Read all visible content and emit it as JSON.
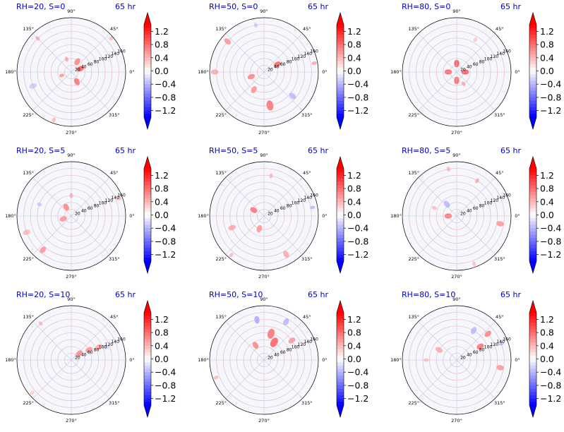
{
  "figure": {
    "panel_layout": "3x3 grid of polar plots, each with its own vertical colorbar on the right"
  },
  "chart_data": [
    {
      "type": "heatmap",
      "projection": "polar",
      "title": "RH=20, S=0",
      "time_label": "65 hr",
      "angle_ticks": [
        "0°",
        "45°",
        "90°",
        "135°",
        "180°",
        "225°",
        "270°",
        "315°"
      ],
      "radial_ticks": [
        20,
        40,
        60,
        80,
        100,
        120,
        140,
        160
      ],
      "colorbar": {
        "ticks": [
          -1.2,
          -0.8,
          -0.4,
          0.0,
          0.4,
          0.8,
          1.2
        ],
        "tick_labels": [
          "−1.2",
          "−0.8",
          "−0.4",
          "0.0",
          "0.4",
          "0.8",
          "1.2"
        ],
        "range": [
          -1.4,
          1.4
        ],
        "extend": "both",
        "colormap": "bwr"
      },
      "features": [
        {
          "r": 28,
          "theta": 20,
          "value": 0.9,
          "size": 3
        },
        {
          "r": 35,
          "theta": 60,
          "value": 0.7,
          "size": 3
        },
        {
          "r": 40,
          "theta": 110,
          "value": 0.5,
          "size": 2
        },
        {
          "r": 30,
          "theta": 200,
          "value": 0.6,
          "size": 2
        },
        {
          "r": 33,
          "theta": 300,
          "value": 0.8,
          "size": 3
        },
        {
          "r": 140,
          "theta": 135,
          "value": 0.5,
          "size": 2
        },
        {
          "r": 155,
          "theta": 40,
          "value": 0.4,
          "size": 2
        },
        {
          "r": 120,
          "theta": 200,
          "value": -0.3,
          "size": 3
        },
        {
          "r": 150,
          "theta": 250,
          "value": 0.4,
          "size": 2
        }
      ],
      "grid": true
    },
    {
      "type": "heatmap",
      "projection": "polar",
      "title": "RH=50, S=0",
      "time_label": "65 hr",
      "angle_ticks": [
        "0°",
        "45°",
        "90°",
        "135°",
        "180°",
        "225°",
        "270°",
        "315°"
      ],
      "radial_ticks": [
        20,
        40,
        60,
        80,
        100,
        120,
        140,
        160
      ],
      "colorbar": {
        "ticks": [
          -1.2,
          -0.8,
          -0.4,
          0.0,
          0.4,
          0.8,
          1.2
        ],
        "tick_labels": [
          "−1.2",
          "−0.8",
          "−0.4",
          "0.0",
          "0.4",
          "0.8",
          "1.2"
        ],
        "range": [
          -1.4,
          1.4
        ],
        "extend": "both",
        "colormap": "bwr"
      },
      "features": [
        {
          "r": 45,
          "theta": 30,
          "value": 0.9,
          "size": 3
        },
        {
          "r": 40,
          "theta": 200,
          "value": 0.7,
          "size": 3
        },
        {
          "r": 60,
          "theta": 240,
          "value": 0.6,
          "size": 3
        },
        {
          "r": 140,
          "theta": 140,
          "value": 0.6,
          "size": 3
        },
        {
          "r": 145,
          "theta": 180,
          "value": 0.5,
          "size": 3
        },
        {
          "r": 150,
          "theta": 10,
          "value": 0.5,
          "size": 2
        },
        {
          "r": 100,
          "theta": 280,
          "value": 0.8,
          "size": 4
        },
        {
          "r": 110,
          "theta": 320,
          "value": -0.4,
          "size": 3
        },
        {
          "r": 140,
          "theta": 100,
          "value": -0.3,
          "size": 2
        }
      ],
      "grid": true
    },
    {
      "type": "heatmap",
      "projection": "polar",
      "title": "RH=80, S=0",
      "time_label": "65 hr",
      "angle_ticks": [
        "0°",
        "45°",
        "90°",
        "135°",
        "180°",
        "225°",
        "270°",
        "315°"
      ],
      "radial_ticks": [
        20,
        40,
        60,
        80,
        100,
        120,
        140,
        160
      ],
      "colorbar": {
        "ticks": [
          -1.2,
          -0.8,
          -0.4,
          0.0,
          0.4,
          0.8,
          1.2
        ],
        "tick_labels": [
          "−1.2",
          "−0.8",
          "−0.4",
          "0.0",
          "0.4",
          "0.8",
          "1.2"
        ],
        "range": [
          -1.4,
          1.4
        ],
        "extend": "both",
        "colormap": "bwr"
      },
      "features": [
        {
          "r": 25,
          "theta": 0,
          "value": 1.0,
          "size": 3
        },
        {
          "r": 25,
          "theta": 90,
          "value": 1.0,
          "size": 3
        },
        {
          "r": 25,
          "theta": 180,
          "value": 0.9,
          "size": 3
        },
        {
          "r": 25,
          "theta": 270,
          "value": 0.9,
          "size": 3
        },
        {
          "r": 40,
          "theta": 300,
          "value": 0.5,
          "size": 2
        },
        {
          "r": 110,
          "theta": 60,
          "value": 0.3,
          "size": 2
        }
      ],
      "grid": true
    },
    {
      "type": "heatmap",
      "projection": "polar",
      "title": "RH=20, S=5",
      "time_label": "65 hr",
      "angle_ticks": [
        "0°",
        "45°",
        "90°",
        "135°",
        "180°",
        "225°",
        "270°",
        "315°"
      ],
      "radial_ticks": [
        20,
        40,
        60,
        80,
        100,
        120,
        140,
        160
      ],
      "colorbar": {
        "ticks": [
          -1.2,
          -0.8,
          -0.4,
          0.0,
          0.4,
          0.8,
          1.2
        ],
        "tick_labels": [
          "−1.2",
          "−0.8",
          "−0.4",
          "0.0",
          "0.4",
          "0.8",
          "1.2"
        ],
        "range": [
          -1.4,
          1.4
        ],
        "extend": "both",
        "colormap": "bwr"
      },
      "features": [
        {
          "r": 30,
          "theta": 120,
          "value": 0.7,
          "size": 3
        },
        {
          "r": 25,
          "theta": 200,
          "value": 0.6,
          "size": 3
        },
        {
          "r": 60,
          "theta": 90,
          "value": 0.5,
          "size": 2
        },
        {
          "r": 140,
          "theta": 200,
          "value": 0.4,
          "size": 3
        },
        {
          "r": 130,
          "theta": 230,
          "value": 0.6,
          "size": 3
        },
        {
          "r": 150,
          "theta": 20,
          "value": 0.4,
          "size": 2
        },
        {
          "r": 100,
          "theta": 160,
          "value": -0.3,
          "size": 2
        }
      ],
      "grid": true
    },
    {
      "type": "heatmap",
      "projection": "polar",
      "title": "RH=50, S=5",
      "time_label": "65 hr",
      "angle_ticks": [
        "0°",
        "45°",
        "90°",
        "135°",
        "180°",
        "225°",
        "270°",
        "315°"
      ],
      "radial_ticks": [
        20,
        40,
        60,
        80,
        100,
        120,
        140,
        160
      ],
      "colorbar": {
        "ticks": [
          -1.2,
          -0.8,
          -0.4,
          0.0,
          0.4,
          0.8,
          1.2
        ],
        "tick_labels": [
          "−1.2",
          "−0.8",
          "−0.4",
          "0.0",
          "0.4",
          "0.8",
          "1.2"
        ],
        "range": [
          -1.4,
          1.4
        ],
        "extend": "both",
        "colormap": "bwr"
      },
      "features": [
        {
          "r": 35,
          "theta": 150,
          "value": 0.8,
          "size": 3
        },
        {
          "r": 40,
          "theta": 250,
          "value": 0.6,
          "size": 3
        },
        {
          "r": 100,
          "theta": 200,
          "value": 0.5,
          "size": 3
        },
        {
          "r": 130,
          "theta": 300,
          "value": 0.5,
          "size": 3
        },
        {
          "r": 145,
          "theta": 10,
          "value": -0.4,
          "size": 2
        },
        {
          "r": 120,
          "theta": 80,
          "value": 0.4,
          "size": 2
        },
        {
          "r": 150,
          "theta": 230,
          "value": 0.4,
          "size": 2
        }
      ],
      "grid": true
    },
    {
      "type": "heatmap",
      "projection": "polar",
      "title": "RH=80, S=5",
      "time_label": "65 hr",
      "angle_ticks": [
        "0°",
        "45°",
        "90°",
        "135°",
        "180°",
        "225°",
        "270°",
        "315°"
      ],
      "radial_ticks": [
        20,
        40,
        60,
        80,
        100,
        120,
        140,
        160
      ],
      "colorbar": {
        "ticks": [
          -1.2,
          -0.8,
          -0.4,
          0.0,
          0.4,
          0.8,
          1.2
        ],
        "tick_labels": [
          "−1.2",
          "−0.8",
          "−0.4",
          "0.0",
          "0.4",
          "0.8",
          "1.2"
        ],
        "range": [
          -1.4,
          1.4
        ],
        "extend": "both",
        "colormap": "bwr"
      },
      "features": [
        {
          "r": 25,
          "theta": 180,
          "value": 0.8,
          "size": 3
        },
        {
          "r": 45,
          "theta": 130,
          "value": -0.4,
          "size": 3
        },
        {
          "r": 70,
          "theta": 160,
          "value": 0.4,
          "size": 2
        },
        {
          "r": 120,
          "theta": 60,
          "value": 0.5,
          "size": 2
        },
        {
          "r": 130,
          "theta": 350,
          "value": 0.6,
          "size": 3
        },
        {
          "r": 150,
          "theta": 290,
          "value": 0.4,
          "size": 2
        },
        {
          "r": 140,
          "theta": 100,
          "value": 0.4,
          "size": 2
        }
      ],
      "grid": true
    },
    {
      "type": "heatmap",
      "projection": "polar",
      "title": "RH=20, S=10",
      "time_label": "65 hr",
      "angle_ticks": [
        "0°",
        "45°",
        "90°",
        "135°",
        "180°",
        "225°",
        "270°",
        "315°"
      ],
      "radial_ticks": [
        20,
        40,
        60,
        80,
        100,
        120,
        140,
        160
      ],
      "colorbar": {
        "ticks": [
          -1.2,
          -0.8,
          -0.4,
          0.0,
          0.4,
          0.8,
          1.2
        ],
        "tick_labels": [
          "−1.2",
          "−0.8",
          "−0.4",
          "0.0",
          "0.4",
          "0.8",
          "1.2"
        ],
        "range": [
          -1.4,
          1.4
        ],
        "extend": "both",
        "colormap": "bwr"
      },
      "features": [
        {
          "r": 30,
          "theta": 40,
          "value": 0.7,
          "size": 3
        },
        {
          "r": 60,
          "theta": 30,
          "value": 0.6,
          "size": 3
        },
        {
          "r": 90,
          "theta": 25,
          "value": 0.5,
          "size": 3
        },
        {
          "r": 110,
          "theta": 20,
          "value": -0.3,
          "size": 2
        },
        {
          "r": 140,
          "theta": 130,
          "value": 0.4,
          "size": 2
        },
        {
          "r": 150,
          "theta": 220,
          "value": 0.3,
          "size": 2
        }
      ],
      "grid": true
    },
    {
      "type": "heatmap",
      "projection": "polar",
      "title": "RH=50, S=10",
      "time_label": "65 hr",
      "angle_ticks": [
        "0°",
        "45°",
        "90°",
        "135°",
        "180°",
        "225°",
        "270°",
        "315°"
      ],
      "radial_ticks": [
        20,
        40,
        60,
        80,
        100,
        120,
        140,
        160
      ],
      "colorbar": {
        "ticks": [
          -1.2,
          -0.8,
          -0.4,
          0.0,
          0.4,
          0.8,
          1.2
        ],
        "tick_labels": [
          "−1.2",
          "−0.8",
          "−0.4",
          "0.0",
          "0.4",
          "0.8",
          "1.2"
        ],
        "range": [
          -1.4,
          1.4
        ],
        "extend": "both",
        "colormap": "bwr"
      },
      "features": [
        {
          "r": 60,
          "theta": 60,
          "value": 0.9,
          "size": 4
        },
        {
          "r": 80,
          "theta": 75,
          "value": 0.8,
          "size": 4
        },
        {
          "r": 50,
          "theta": 120,
          "value": 0.7,
          "size": 3
        },
        {
          "r": 120,
          "theta": 100,
          "value": -0.5,
          "size": 3
        },
        {
          "r": 130,
          "theta": 60,
          "value": -0.4,
          "size": 3
        },
        {
          "r": 100,
          "theta": 35,
          "value": 0.6,
          "size": 3
        },
        {
          "r": 150,
          "theta": 200,
          "value": 0.4,
          "size": 2
        }
      ],
      "grid": true
    },
    {
      "type": "heatmap",
      "projection": "polar",
      "title": "RH=80, S=10",
      "time_label": "65 hr",
      "angle_ticks": [
        "0°",
        "45°",
        "90°",
        "135°",
        "180°",
        "225°",
        "270°",
        "315°"
      ],
      "radial_ticks": [
        20,
        40,
        60,
        80,
        100,
        120,
        140,
        160
      ],
      "colorbar": {
        "ticks": [
          -1.2,
          -0.8,
          -0.4,
          0.0,
          0.4,
          0.8,
          1.2
        ],
        "tick_labels": [
          "−1.2",
          "−0.8",
          "−0.4",
          "0.0",
          "0.4",
          "0.8",
          "1.2"
        ],
        "range": [
          -1.4,
          1.4
        ],
        "extend": "both",
        "colormap": "bwr"
      },
      "features": [
        {
          "r": 80,
          "theta": 30,
          "value": 0.8,
          "size": 3
        },
        {
          "r": 120,
          "theta": 40,
          "value": 0.7,
          "size": 3
        },
        {
          "r": 100,
          "theta": 60,
          "value": -0.4,
          "size": 3
        },
        {
          "r": 140,
          "theta": 20,
          "value": -0.4,
          "size": 2
        },
        {
          "r": 60,
          "theta": 150,
          "value": 0.5,
          "size": 3
        },
        {
          "r": 130,
          "theta": 350,
          "value": 0.6,
          "size": 3
        },
        {
          "r": 90,
          "theta": 180,
          "value": 0.4,
          "size": 2
        }
      ],
      "grid": true
    }
  ]
}
